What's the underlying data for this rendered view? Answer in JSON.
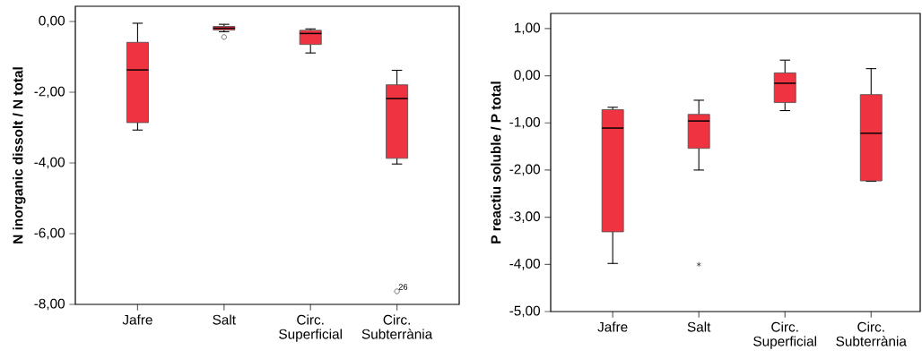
{
  "chart_data": [
    {
      "type": "box",
      "ylabel": "N inorganic dissolt / N total",
      "color": "#ef3340",
      "categories": [
        "Jafre",
        "Salt",
        "Circ. Superficial",
        "Circ. Subterrània"
      ],
      "boxes": [
        {
          "low": -3.07,
          "q1": -2.86,
          "median": -1.37,
          "q3": -0.59,
          "high": -0.05
        },
        {
          "low": -0.29,
          "q1": -0.24,
          "median": -0.19,
          "q3": -0.14,
          "high": -0.08,
          "outliers": [
            -0.44
          ]
        },
        {
          "low": -0.89,
          "q1": -0.65,
          "median": -0.34,
          "q3": -0.25,
          "high": -0.21
        },
        {
          "low": -4.03,
          "q1": -3.87,
          "median": -2.18,
          "q3": -1.79,
          "high": -1.38,
          "outliers": [
            -7.63
          ]
        }
      ],
      "ylim": [
        -8,
        0.43
      ],
      "yticks": [
        {
          "value": -8,
          "label": "-8,00"
        },
        {
          "value": -6,
          "label": "-6,00"
        },
        {
          "value": -4,
          "label": "-4,00"
        },
        {
          "value": -2,
          "label": "-2,00"
        },
        {
          "value": 0,
          "label": "0,00"
        }
      ],
      "annotations": [
        "26"
      ]
    },
    {
      "type": "box",
      "ylabel": "P reactiu soluble / P total",
      "color": "#ef3340",
      "categories": [
        "Jafre",
        "Salt",
        "Circ. Superficial",
        "Circ. Subterrània"
      ],
      "boxes": [
        {
          "low": -3.98,
          "q1": -3.31,
          "median": -1.11,
          "q3": -0.72,
          "high": -0.67
        },
        {
          "low": -2.0,
          "q1": -1.54,
          "median": -0.96,
          "q3": -0.82,
          "high": -0.52,
          "outliers": [
            -4.0
          ]
        },
        {
          "low": -0.74,
          "q1": -0.57,
          "median": -0.16,
          "q3": 0.06,
          "high": 0.33
        },
        {
          "low": -2.24,
          "q1": -2.23,
          "median": -1.22,
          "q3": -0.4,
          "high": 0.15
        }
      ],
      "ylim": [
        -5,
        1.32
      ],
      "yticks": [
        {
          "value": -5,
          "label": "-5,00"
        },
        {
          "value": -4,
          "label": "-4,00"
        },
        {
          "value": -3,
          "label": "-3,00"
        },
        {
          "value": -2,
          "label": "-2,00"
        },
        {
          "value": -1,
          "label": "-1,00"
        },
        {
          "value": 0,
          "label": "0,00"
        },
        {
          "value": 1,
          "label": "1,00"
        }
      ]
    }
  ]
}
